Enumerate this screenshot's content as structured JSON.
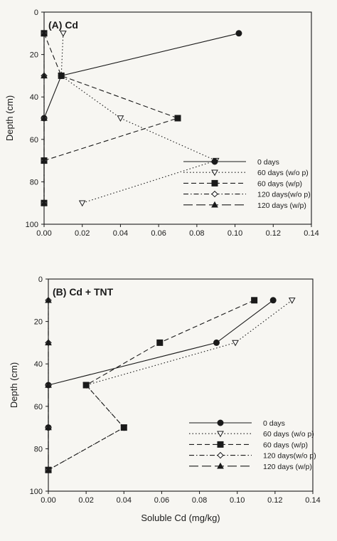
{
  "chart_data": [
    {
      "type": "line",
      "title": "(A) Cd",
      "xlabel": "",
      "ylabel": "Depth (cm)",
      "xlim": [
        0,
        0.14
      ],
      "ylim": [
        0,
        100
      ],
      "y_inverted": true,
      "x_ticks": [
        0,
        0.02,
        0.04,
        0.06,
        0.08,
        0.1,
        0.12,
        0.14
      ],
      "x_tick_labels": [
        "0.00",
        "0.02",
        "0.04",
        "0.06",
        "0.08",
        "0.10",
        "0.12",
        "0.14"
      ],
      "y_ticks": [
        0,
        20,
        40,
        60,
        80,
        100
      ],
      "y_tick_labels": [
        "0",
        "20",
        "40",
        "60",
        "80",
        "100"
      ],
      "legend_position": "lower-right",
      "series": [
        {
          "name": "0 days",
          "marker": "circle-filled",
          "line": "solid",
          "x": [
            0.102,
            0.009,
            0.0,
            0.0,
            0.0
          ],
          "y": [
            10,
            30,
            50,
            70,
            90
          ]
        },
        {
          "name": "60 days (w/o p)",
          "marker": "triangle-down-open",
          "line": "dotted",
          "x": [
            0.01,
            0.009,
            0.04,
            0.09,
            0.02
          ],
          "y": [
            10,
            30,
            50,
            70,
            90
          ]
        },
        {
          "name": "60 days (w/p)",
          "marker": "square-filled",
          "line": "dashed",
          "x": [
            0.0,
            0.009,
            0.07,
            0.0,
            0.0
          ],
          "y": [
            10,
            30,
            50,
            70,
            90
          ]
        },
        {
          "name": "120 days(w/o p)",
          "marker": "diamond-open",
          "line": "dashdot",
          "x": [
            0.0,
            0.0,
            0.0,
            0.0,
            0.0
          ],
          "y": [
            10,
            30,
            50,
            70,
            90
          ]
        },
        {
          "name": "120 days (w/p)",
          "marker": "triangle-up-filled",
          "line": "longdash",
          "x": [
            0.0,
            0.0,
            0.0,
            0.0,
            0.0
          ],
          "y": [
            10,
            30,
            50,
            70,
            90
          ]
        }
      ]
    },
    {
      "type": "line",
      "title": "(B) Cd + TNT",
      "xlabel": "Soluble Cd (mg/kg)",
      "ylabel": "Depth (cm)",
      "xlim": [
        0,
        0.14
      ],
      "ylim": [
        0,
        100
      ],
      "y_inverted": true,
      "x_ticks": [
        0,
        0.02,
        0.04,
        0.06,
        0.08,
        0.1,
        0.12,
        0.14
      ],
      "x_tick_labels": [
        "0.00",
        "0.02",
        "0.04",
        "0.06",
        "0.08",
        "0.10",
        "0.12",
        "0.14"
      ],
      "y_ticks": [
        0,
        20,
        40,
        60,
        80,
        100
      ],
      "y_tick_labels": [
        "0",
        "20",
        "40",
        "60",
        "80",
        "100"
      ],
      "legend_position": "lower-right",
      "series": [
        {
          "name": "0 days",
          "marker": "circle-filled",
          "line": "solid",
          "x": [
            0.119,
            0.089,
            0.0,
            0.0,
            0.0
          ],
          "y": [
            10,
            30,
            50,
            70,
            90
          ]
        },
        {
          "name": "60 days (w/o p)",
          "marker": "triangle-down-open",
          "line": "dotted",
          "x": [
            0.129,
            0.099,
            0.02,
            0.04,
            0.0
          ],
          "y": [
            10,
            30,
            50,
            70,
            90
          ]
        },
        {
          "name": "60 days (w/p)",
          "marker": "square-filled",
          "line": "dashed",
          "x": [
            0.109,
            0.059,
            0.02,
            0.04,
            0.0
          ],
          "y": [
            10,
            30,
            50,
            70,
            90
          ]
        },
        {
          "name": "120 days(w/o p)",
          "marker": "diamond-open",
          "line": "dashdot",
          "x": [
            0.0,
            0.0,
            0.0,
            0.0,
            0.0
          ],
          "y": [
            10,
            30,
            50,
            70,
            90
          ]
        },
        {
          "name": "120 days (w/p)",
          "marker": "triangle-up-filled",
          "line": "longdash",
          "x": [
            0.0,
            0.0,
            0.0,
            0.0,
            0.0
          ],
          "y": [
            10,
            30,
            50,
            70,
            90
          ]
        }
      ]
    }
  ]
}
